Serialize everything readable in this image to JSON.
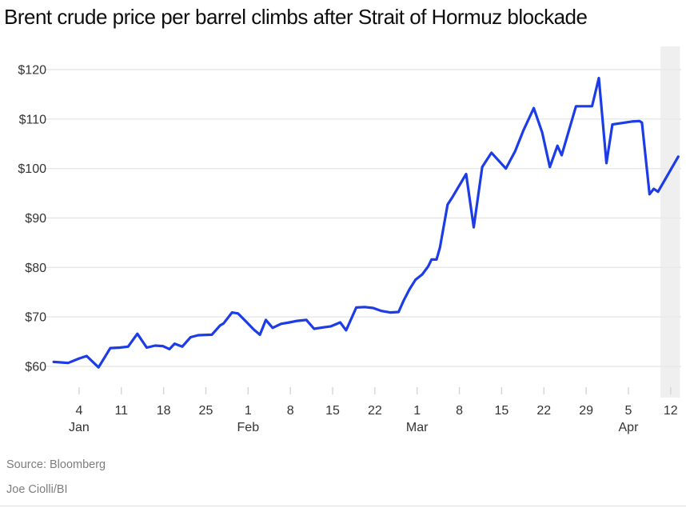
{
  "title": "Brent crude price per barrel climbs after Strait of Hormuz blockade",
  "footer": {
    "source": "Source: Bloomberg",
    "byline": "Joe Ciolli/BI"
  },
  "colors": {
    "line": "#1c3ce8",
    "grid": "#e7e7e7",
    "band": "#e9e9e9",
    "tick": "#d5d5d5",
    "axis_text": "#333333",
    "title_text": "#0f0f0f",
    "footer_text": "#7d7d7d"
  },
  "chart_data": {
    "type": "line",
    "title": "Brent crude price per barrel climbs after Strait of Hormuz blockade",
    "xlabel": "",
    "ylabel": "",
    "grid": true,
    "legend": false,
    "ylim": [
      57,
      125
    ],
    "y_axis": {
      "ticks": [
        {
          "value": 120,
          "label": "$120"
        },
        {
          "value": 110,
          "label": "$110"
        },
        {
          "value": 100,
          "label": "$100"
        },
        {
          "value": 90,
          "label": "$90"
        },
        {
          "value": 80,
          "label": "$80"
        },
        {
          "value": 70,
          "label": "$70"
        },
        {
          "value": 60,
          "label": "$60"
        }
      ]
    },
    "x_axis": {
      "unit": "weekday index from Jan 1",
      "ticks": [
        {
          "day": 3,
          "label": "4",
          "month": "Jan"
        },
        {
          "day": 8,
          "label": "11"
        },
        {
          "day": 13,
          "label": "18"
        },
        {
          "day": 18,
          "label": "25"
        },
        {
          "day": 23,
          "label": "1",
          "month": "Feb"
        },
        {
          "day": 28,
          "label": "8"
        },
        {
          "day": 33,
          "label": "15"
        },
        {
          "day": 38,
          "label": "22"
        },
        {
          "day": 43,
          "label": "1",
          "month": "Mar"
        },
        {
          "day": 48,
          "label": "8"
        },
        {
          "day": 53,
          "label": "15"
        },
        {
          "day": 58,
          "label": "22"
        },
        {
          "day": 63,
          "label": "29"
        },
        {
          "day": 68,
          "label": "5",
          "month": "Apr"
        },
        {
          "day": 73,
          "label": "12"
        }
      ]
    },
    "highlight_band": {
      "from_day": 71.8,
      "to_day": 74.1
    },
    "series": [
      {
        "name": "Brent crude price per barrel",
        "color": "#1c3ce8",
        "points": [
          [
            0.0,
            60.9
          ],
          [
            1.0,
            60.8
          ],
          [
            1.7,
            60.7
          ],
          [
            3.0,
            61.6
          ],
          [
            3.9,
            62.1
          ],
          [
            5.3,
            59.8
          ],
          [
            6.7,
            63.7
          ],
          [
            7.8,
            63.8
          ],
          [
            8.8,
            64.0
          ],
          [
            9.9,
            66.6
          ],
          [
            11.0,
            63.8
          ],
          [
            12.0,
            64.2
          ],
          [
            12.9,
            64.1
          ],
          [
            13.7,
            63.5
          ],
          [
            14.3,
            64.6
          ],
          [
            15.2,
            64.0
          ],
          [
            16.2,
            65.9
          ],
          [
            17.1,
            66.3
          ],
          [
            18.7,
            66.4
          ],
          [
            19.7,
            68.3
          ],
          [
            20.1,
            68.7
          ],
          [
            21.1,
            70.9
          ],
          [
            21.8,
            70.7
          ],
          [
            22.8,
            69.0
          ],
          [
            23.7,
            67.4
          ],
          [
            24.4,
            66.4
          ],
          [
            25.1,
            69.4
          ],
          [
            25.9,
            67.8
          ],
          [
            26.9,
            68.6
          ],
          [
            27.9,
            68.9
          ],
          [
            28.8,
            69.2
          ],
          [
            29.9,
            69.4
          ],
          [
            30.8,
            67.6
          ],
          [
            31.9,
            67.9
          ],
          [
            32.8,
            68.1
          ],
          [
            33.9,
            68.9
          ],
          [
            34.6,
            67.3
          ],
          [
            35.8,
            71.9
          ],
          [
            36.8,
            72.0
          ],
          [
            37.8,
            71.8
          ],
          [
            38.8,
            71.2
          ],
          [
            39.8,
            70.9
          ],
          [
            40.8,
            71.0
          ],
          [
            41.4,
            73.3
          ],
          [
            42.1,
            75.6
          ],
          [
            42.8,
            77.5
          ],
          [
            43.6,
            78.6
          ],
          [
            44.3,
            80.2
          ],
          [
            44.7,
            81.6
          ],
          [
            45.3,
            81.6
          ],
          [
            45.7,
            84.0
          ],
          [
            46.6,
            92.7
          ],
          [
            47.1,
            94.0
          ],
          [
            48.8,
            98.9
          ],
          [
            49.7,
            88.1
          ],
          [
            50.7,
            100.3
          ],
          [
            51.8,
            103.2
          ],
          [
            53.5,
            100.0
          ],
          [
            54.6,
            103.5
          ],
          [
            55.6,
            107.8
          ],
          [
            56.8,
            112.2
          ],
          [
            57.8,
            107.3
          ],
          [
            58.7,
            100.3
          ],
          [
            59.6,
            104.6
          ],
          [
            60.1,
            102.7
          ],
          [
            61.8,
            112.6
          ],
          [
            63.7,
            112.6
          ],
          [
            64.5,
            118.3
          ],
          [
            65.4,
            101.1
          ],
          [
            66.1,
            108.9
          ],
          [
            68.4,
            109.5
          ],
          [
            69.3,
            109.6
          ],
          [
            69.6,
            109.3
          ],
          [
            70.5,
            94.8
          ],
          [
            71.0,
            95.9
          ],
          [
            71.5,
            95.3
          ],
          [
            73.9,
            102.4
          ]
        ]
      }
    ]
  }
}
